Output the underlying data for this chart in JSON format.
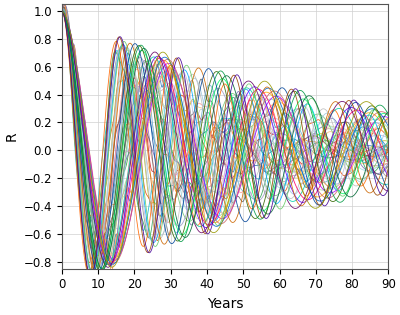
{
  "xlabel": "Years",
  "ylabel": "R",
  "xlim": [
    0,
    90
  ],
  "ylim": [
    -0.85,
    1.05
  ],
  "xticks": [
    0,
    10,
    20,
    30,
    40,
    50,
    60,
    70,
    80,
    90
  ],
  "yticks": [
    -0.8,
    -0.6,
    -0.4,
    -0.2,
    0,
    0.2,
    0.4,
    0.6,
    0.8,
    1
  ],
  "grid_color": "#d0d0d0",
  "background_color": "#ffffff",
  "n_curves": 55,
  "t_max": 90,
  "n_points": 1000,
  "linewidth": 0.6,
  "color_list": [
    "#1f77b4",
    "#ff7f0e",
    "#2ca02c",
    "#d62728",
    "#9467bd",
    "#8c564b",
    "#e377c2",
    "#7f7f7f",
    "#bcbd22",
    "#17becf",
    "#aec7e8",
    "#ffbb78",
    "#98df8a",
    "#ff9896",
    "#c5b0d5",
    "#c49c94",
    "#f7b6d2",
    "#c7c7c7",
    "#dbdb8d",
    "#9edae5",
    "#3182bd",
    "#e6550d",
    "#31a354",
    "#756bb1",
    "#636363",
    "#6baed6",
    "#fd8d3c",
    "#74c476",
    "#9e9ac8",
    "#969696",
    "#9ecae1",
    "#fdae6b",
    "#a1d99b",
    "#bcbddc",
    "#bdbdbd",
    "#ff6600",
    "#00aaff",
    "#aa00ff",
    "#00ccaa",
    "#ffaa00",
    "#ff0066",
    "#00ff66",
    "#6600ff",
    "#cc6666",
    "#66cc66",
    "#0066cc",
    "#cc6600",
    "#006633",
    "#660066",
    "#336600",
    "#004499",
    "#994400",
    "#009944",
    "#440099",
    "#999900"
  ]
}
